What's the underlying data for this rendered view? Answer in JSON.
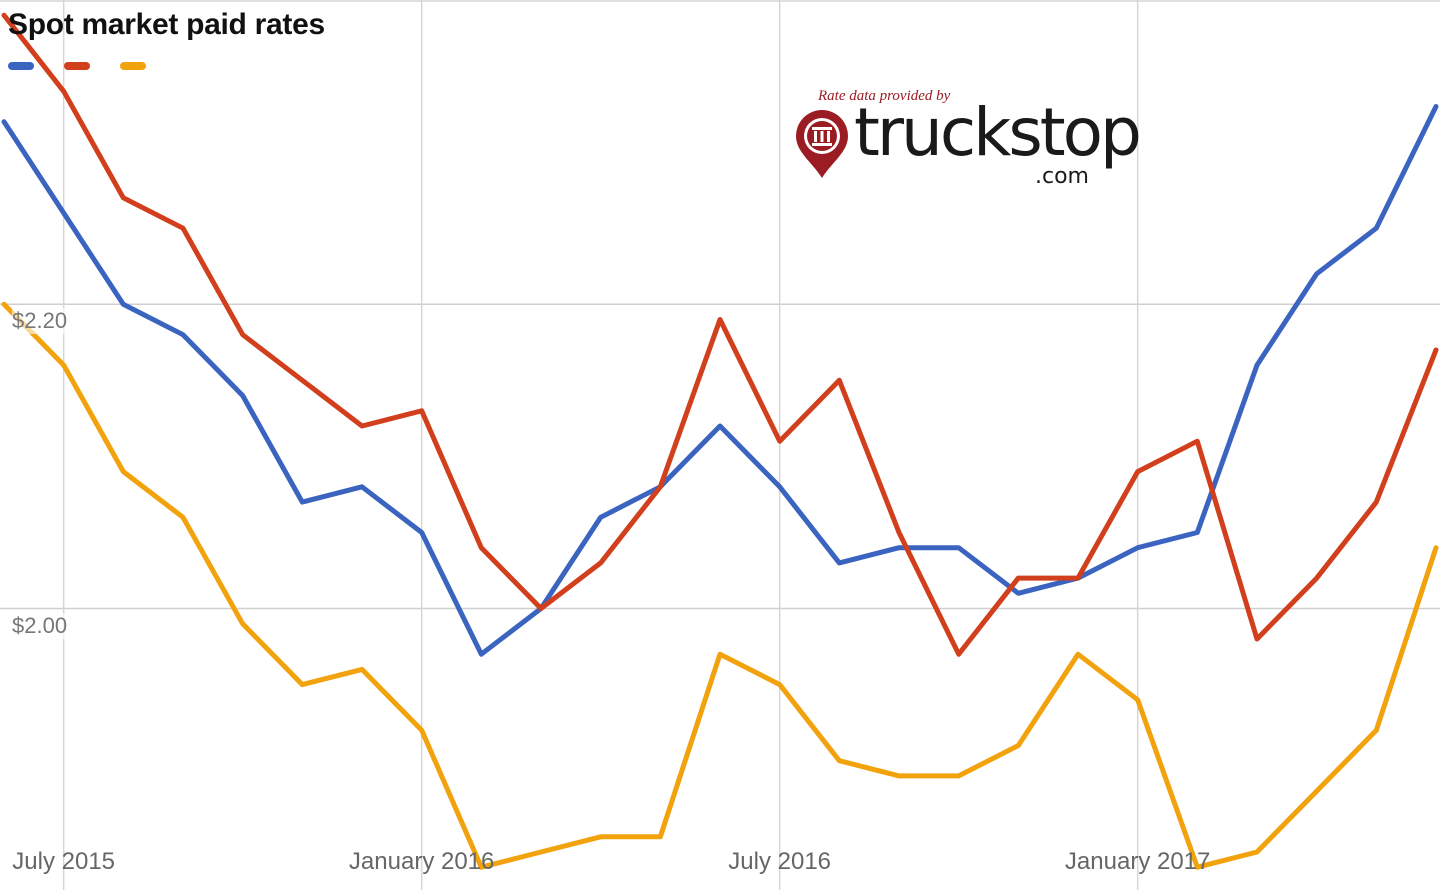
{
  "chart_data": {
    "type": "line",
    "title": "Spot market paid rates",
    "xlabel": "",
    "ylabel": "",
    "x_ticks": [
      {
        "label": "July 2015",
        "index": 1
      },
      {
        "label": "January 2016",
        "index": 7
      },
      {
        "label": "July 2016",
        "index": 13
      },
      {
        "label": "January 2017",
        "index": 19
      }
    ],
    "y_ticks": [
      {
        "label": "$2.20",
        "value": 2.2
      },
      {
        "label": "$2.00",
        "value": 2.0
      }
    ],
    "ylim": [
      1.815,
      2.4
    ],
    "grid": true,
    "legend": "top-left",
    "x_count": 25,
    "series": [
      {
        "color": "#3a64c0",
        "values": [
          2.32,
          2.26,
          2.2,
          2.18,
          2.14,
          2.07,
          2.08,
          2.05,
          1.97,
          2.0,
          2.06,
          2.08,
          2.12,
          2.08,
          2.03,
          2.04,
          2.04,
          2.01,
          2.02,
          2.04,
          2.05,
          2.16,
          2.22,
          2.25,
          2.33
        ]
      },
      {
        "color": "#d23f1c",
        "values": [
          2.39,
          2.34,
          2.27,
          2.25,
          2.18,
          2.15,
          2.12,
          2.13,
          2.04,
          2.0,
          2.03,
          2.08,
          2.19,
          2.11,
          2.15,
          2.05,
          1.97,
          2.02,
          2.02,
          2.09,
          2.11,
          1.98,
          2.02,
          2.07,
          2.17
        ]
      },
      {
        "color": "#f1a20c",
        "values": [
          2.2,
          2.16,
          2.09,
          2.06,
          1.99,
          1.95,
          1.96,
          1.92,
          1.83,
          1.84,
          1.85,
          1.85,
          1.97,
          1.95,
          1.9,
          1.89,
          1.89,
          1.91,
          1.97,
          1.94,
          1.83,
          1.84,
          1.88,
          1.92,
          2.04
        ]
      }
    ]
  },
  "logo": {
    "caption": "Rate data provided by",
    "word": "truckstop",
    "suffix": ".com",
    "color": "#9b1c22"
  }
}
